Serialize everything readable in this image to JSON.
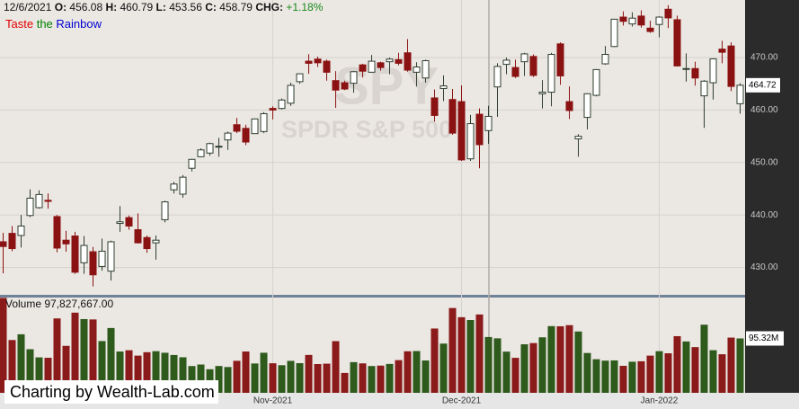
{
  "chart_data": {
    "type": "candlestick",
    "watermark": [
      "SPY",
      "SPDR S&P 500"
    ],
    "crosshair": {
      "date": "12/6/2021",
      "fields": [
        {
          "label": "O:",
          "value": 456.08
        },
        {
          "label": "H:",
          "value": 460.79
        },
        {
          "label": "L:",
          "value": 453.56
        },
        {
          "label": "C:",
          "value": 458.79
        },
        {
          "label": "CHG:",
          "value": "+1.18%"
        }
      ]
    },
    "tagline": [
      {
        "text": "Taste",
        "color": "#e00000"
      },
      {
        "text": "the",
        "color": "#008000"
      },
      {
        "text": "Rainbow",
        "color": "#0000d0"
      }
    ],
    "volume_header": {
      "label": "Volume",
      "value": "97,827,667.00"
    },
    "footer": "Charting by Wealth-Lab.com",
    "categories": [
      null,
      null,
      null,
      null,
      null,
      null,
      null,
      null,
      null,
      null,
      null,
      null,
      null,
      null,
      null,
      null,
      null,
      null,
      null,
      null,
      null,
      null,
      null,
      null,
      null,
      null,
      null,
      null,
      null,
      null,
      "Nov-2021",
      null,
      null,
      null,
      null,
      null,
      null,
      null,
      null,
      null,
      null,
      null,
      null,
      null,
      null,
      null,
      null,
      null,
      null,
      null,
      null,
      "Dec-2021",
      null,
      null,
      null,
      null,
      null,
      null,
      null,
      null,
      null,
      null,
      null,
      null,
      null,
      null,
      null,
      null,
      null,
      null,
      null,
      null,
      null,
      "Jan-2022",
      null,
      null,
      null,
      null,
      null,
      null,
      null,
      null,
      null
    ],
    "open": [
      434.9,
      436.5,
      436.1,
      439.9,
      441.4,
      442.8,
      439.7,
      435.2,
      436.0,
      430.9,
      433.0,
      430.2,
      429.3,
      438.4,
      439.5,
      437.2,
      435.7,
      434.7,
      439.1,
      444.8,
      443.97,
      448.9,
      451.1,
      451.8,
      453.1,
      454.3,
      457.2,
      456.5,
      455.5,
      455.9,
      460.3,
      460.3,
      461.3,
      465.4,
      469.3,
      469.7,
      469.3,
      465.6,
      465.2,
      465.1,
      468.6,
      467.2,
      469.0,
      469.2,
      469.6,
      470.9,
      467.2,
      466.1,
      462.3,
      464.1,
      462.0,
      461.6,
      450.7,
      459.2,
      456.08,
      464.4,
      468.7,
      468.1,
      469.2,
      470.2,
      463.1,
      463.4,
      472.6,
      461.6,
      454.5,
      458.6,
      462.8,
      468.8,
      472.1,
      477.7,
      476.4,
      477.9,
      475.6,
      476.3,
      479.2,
      477.2,
      467.9,
      467.9,
      462.7,
      465.2,
      471.6,
      472.2,
      461.2
    ],
    "high": [
      436.6,
      437.9,
      440.0,
      444.9,
      444.7,
      444.1,
      440.0,
      437.0,
      436.8,
      436.0,
      433.9,
      435.5,
      435.1,
      441.7,
      439.9,
      440.3,
      436.1,
      436.1,
      442.7,
      446.3,
      447.6,
      450.7,
      452.7,
      453.8,
      454.7,
      455.9,
      458.5,
      457.2,
      458.4,
      459.6,
      460.7,
      462.2,
      465.2,
      467.0,
      470.65,
      470.2,
      469.6,
      467.4,
      465.6,
      467.4,
      468.8,
      470.5,
      469.2,
      470.0,
      470.9,
      473.5,
      469.1,
      469.6,
      463.9,
      466.6,
      464.0,
      464.7,
      459.07,
      460.3,
      460.79,
      468.9,
      470.0,
      469.6,
      470.9,
      470.6,
      465.7,
      470.9,
      472.9,
      464.5,
      455.4,
      463.2,
      467.8,
      472.2,
      477.3,
      478.8,
      478.6,
      479.0,
      477.0,
      477.85,
      479.98,
      477.98,
      470.8,
      469.2,
      465.7,
      469.85,
      473.2,
      472.9,
      465.1
    ],
    "low": [
      428.9,
      433.1,
      433.8,
      439.6,
      441.2,
      441.2,
      432.9,
      433.0,
      428.8,
      428.8,
      426.4,
      429.4,
      427.5,
      436.8,
      437.2,
      434.6,
      432.8,
      431.5,
      438.6,
      444.1,
      443.3,
      448.3,
      451.0,
      451.3,
      451.1,
      452.4,
      455.6,
      453.3,
      455.5,
      455.6,
      458.2,
      460.1,
      460.8,
      464.99,
      466.9,
      468.2,
      465.6,
      460.4,
      463.8,
      463.3,
      466.2,
      467.1,
      467.5,
      466.8,
      468.5,
      467.3,
      464.5,
      465.2,
      457.8,
      461.7,
      455.3,
      450.3,
      450.3,
      448.9,
      453.56,
      458.7,
      466.8,
      466.1,
      466.5,
      466.3,
      460.3,
      460.7,
      464.8,
      458.3,
      451.1,
      456.3,
      462.6,
      468.6,
      472.0,
      476.1,
      475.9,
      475.7,
      474.7,
      473.85,
      475.6,
      468.3,
      465.4,
      464.65,
      456.6,
      462.0,
      468.9,
      463.6,
      459.3
    ],
    "close": [
      434.0,
      433.6,
      437.9,
      443.2,
      443.9,
      442.6,
      433.7,
      434.5,
      429.1,
      434.2,
      428.6,
      433.1,
      434.9,
      438.7,
      437.9,
      434.7,
      433.6,
      435.2,
      442.5,
      445.9,
      447.2,
      450.6,
      452.4,
      453.6,
      453.1,
      455.6,
      455.96,
      453.9,
      458.3,
      459.3,
      460.0,
      461.9,
      464.7,
      466.9,
      468.9,
      469.0,
      467.2,
      463.8,
      464.0,
      467.3,
      467.4,
      469.3,
      468.1,
      469.7,
      468.9,
      467.6,
      468.2,
      469.4,
      458.97,
      464.6,
      455.6,
      450.5,
      457.4,
      453.4,
      458.79,
      468.3,
      469.5,
      466.4,
      470.7,
      466.6,
      463.4,
      470.6,
      466.5,
      459.9,
      455.0,
      463.1,
      467.7,
      470.6,
      477.3,
      476.9,
      477.5,
      476.2,
      474.96,
      477.7,
      477.55,
      468.4,
      467.9,
      466.1,
      465.5,
      469.75,
      471.0,
      464.5,
      464.72
    ],
    "volume": [
      166400000,
      92500000,
      102600000,
      76400000,
      62100000,
      61400000,
      130400000,
      82300000,
      140500000,
      129200000,
      128600000,
      90700000,
      113600000,
      72400000,
      74600000,
      65200000,
      71200000,
      72970000,
      70200000,
      66300000,
      62300000,
      46900000,
      49600000,
      41300000,
      47000000,
      45200000,
      56100000,
      72400000,
      51400000,
      70200000,
      51800000,
      48400000,
      56000000,
      52000000,
      66400000,
      50400000,
      51100000,
      90600000,
      34800000,
      53800000,
      51600000,
      46980000,
      47700000,
      50600000,
      57300000,
      72800000,
      73200000,
      56700000,
      112700000,
      86300000,
      148600000,
      132500000,
      127600000,
      137300000,
      97827667,
      95500000,
      72200000,
      61300000,
      85100000,
      87200000,
      97300000,
      116900000,
      116600000,
      118600000,
      107500000,
      69800000,
      58900000,
      56400000,
      56800000,
      47300000,
      54500000,
      55300000,
      65200000,
      73000000,
      69300000,
      99300000,
      90000000,
      80100000,
      119400000,
      74700000,
      67600000,
      96800000,
      95320000
    ],
    "last_volume_label": "95.32M",
    "ylim": [
      424.79,
      480.96
    ],
    "yticks": [
      {
        "value": 430,
        "label": "430.00"
      },
      {
        "value": 440,
        "label": "440.00"
      },
      {
        "value": 450,
        "label": "450.00"
      },
      {
        "value": 460,
        "label": "460.00"
      },
      {
        "value": 470,
        "label": "470.00"
      }
    ],
    "volume_ylim": [
      0,
      167000000
    ],
    "grid": true,
    "up_color": "#ffffff",
    "up_outline": "#2f3f2f",
    "down_color": "#8b1212",
    "volume_up_color": "#2e5a1c",
    "volume_down_color": "#8b1a1a"
  }
}
